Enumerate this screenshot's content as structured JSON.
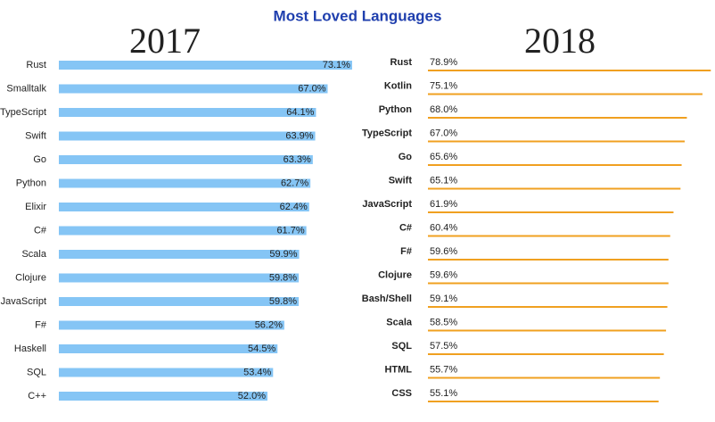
{
  "title": "Most Loved Languages",
  "chart_data": [
    {
      "type": "bar",
      "title": "2017",
      "color": "#85c5f5",
      "xlim": [
        0,
        80
      ],
      "categories": [
        "Rust",
        "Smalltalk",
        "TypeScript",
        "Swift",
        "Go",
        "Python",
        "Elixir",
        "C#",
        "Scala",
        "Clojure",
        "JavaScript",
        "F#",
        "Haskell",
        "SQL",
        "C++"
      ],
      "values": [
        73.1,
        67.0,
        64.1,
        63.9,
        63.3,
        62.7,
        62.4,
        61.7,
        59.9,
        59.8,
        59.8,
        56.2,
        54.5,
        53.4,
        52.0
      ],
      "value_labels": [
        "73.1%",
        "67.0%",
        "64.1%",
        "63.9%",
        "63.3%",
        "62.7%",
        "62.4%",
        "61.7%",
        "59.9%",
        "59.8%",
        "59.8%",
        "56.2%",
        "54.5%",
        "53.4%",
        "52.0%"
      ]
    },
    {
      "type": "line-bar",
      "title": "2018",
      "color": "#f0a020",
      "xlim": [
        -50,
        80
      ],
      "categories": [
        "Rust",
        "Kotlin",
        "Python",
        "TypeScript",
        "Go",
        "Swift",
        "JavaScript",
        "C#",
        "F#",
        "Clojure",
        "Bash/Shell",
        "Scala",
        "SQL",
        "HTML",
        "CSS"
      ],
      "values": [
        78.9,
        75.1,
        68.0,
        67.0,
        65.6,
        65.1,
        61.9,
        60.4,
        59.6,
        59.6,
        59.1,
        58.5,
        57.5,
        55.7,
        55.1
      ],
      "value_labels": [
        "78.9%",
        "75.1%",
        "68.0%",
        "67.0%",
        "65.6%",
        "65.1%",
        "61.9%",
        "60.4%",
        "59.6%",
        "59.6%",
        "59.1%",
        "58.5%",
        "57.5%",
        "55.7%",
        "55.1%"
      ]
    }
  ]
}
